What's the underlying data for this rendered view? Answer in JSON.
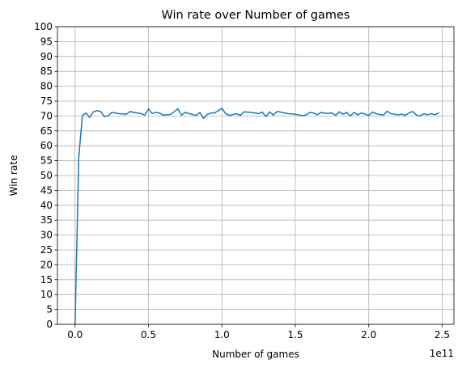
{
  "chart_data": {
    "type": "line",
    "title": "Win rate over Number of games",
    "xlabel": "Number of games",
    "ylabel": "Win rate",
    "x_scale_label": "1e11",
    "xlim": [
      -0.12,
      2.58
    ],
    "ylim": [
      0,
      100
    ],
    "x_ticks": [
      0.0,
      0.5,
      1.0,
      1.5,
      2.0,
      2.5
    ],
    "x_tick_labels": [
      "0.0",
      "0.5",
      "1.0",
      "1.5",
      "2.0",
      "2.5"
    ],
    "y_ticks": [
      0,
      5,
      10,
      15,
      20,
      25,
      30,
      35,
      40,
      45,
      50,
      55,
      60,
      65,
      70,
      75,
      80,
      85,
      90,
      95,
      100
    ],
    "y_tick_labels": [
      "0",
      "5",
      "10",
      "15",
      "20",
      "25",
      "30",
      "35",
      "40",
      "45",
      "50",
      "55",
      "60",
      "65",
      "70",
      "75",
      "80",
      "85",
      "90",
      "95",
      "100"
    ],
    "grid": true,
    "line_color": "#1f77b4",
    "series": [
      {
        "x": [
          0.0,
          0.025,
          0.05,
          0.075,
          0.1,
          0.125,
          0.15,
          0.175,
          0.2,
          0.225,
          0.25,
          0.3,
          0.35,
          0.375,
          0.4,
          0.45,
          0.475,
          0.5,
          0.525,
          0.55,
          0.575,
          0.6,
          0.65,
          0.7,
          0.725,
          0.75,
          0.8,
          0.825,
          0.85,
          0.875,
          0.9,
          0.925,
          0.95,
          1.0,
          1.025,
          1.05,
          1.075,
          1.1,
          1.125,
          1.15,
          1.2,
          1.25,
          1.275,
          1.3,
          1.325,
          1.35,
          1.375,
          1.4,
          1.45,
          1.5,
          1.55,
          1.575,
          1.6,
          1.625,
          1.65,
          1.675,
          1.7,
          1.75,
          1.775,
          1.8,
          1.825,
          1.85,
          1.875,
          1.9,
          1.925,
          1.95,
          2.0,
          2.025,
          2.05,
          2.1,
          2.125,
          2.15,
          2.2,
          2.225,
          2.25,
          2.275,
          2.3,
          2.325,
          2.35,
          2.375,
          2.4,
          2.425,
          2.45,
          2.475
        ],
        "y": [
          0.0,
          56.0,
          70.2,
          71.0,
          69.5,
          71.4,
          71.8,
          71.5,
          69.8,
          70.0,
          71.2,
          70.8,
          70.6,
          71.5,
          71.2,
          70.8,
          70.3,
          72.4,
          70.8,
          71.2,
          71.0,
          70.3,
          70.5,
          72.4,
          70.3,
          71.2,
          70.5,
          70.2,
          71.2,
          69.2,
          70.5,
          71.0,
          71.0,
          72.6,
          70.8,
          70.2,
          70.5,
          70.8,
          70.2,
          71.4,
          71.2,
          70.8,
          71.3,
          69.8,
          71.4,
          70.3,
          71.5,
          71.3,
          70.8,
          70.6,
          70.1,
          70.4,
          71.2,
          71.0,
          70.4,
          71.2,
          70.9,
          71.0,
          70.2,
          71.4,
          70.6,
          71.2,
          70.0,
          71.2,
          70.4,
          71.0,
          70.2,
          71.3,
          70.8,
          70.3,
          71.6,
          70.8,
          70.4,
          70.6,
          70.2,
          71.1,
          71.5,
          70.3,
          70.0,
          70.8,
          70.4,
          70.8,
          70.4,
          71.0
        ]
      }
    ]
  }
}
